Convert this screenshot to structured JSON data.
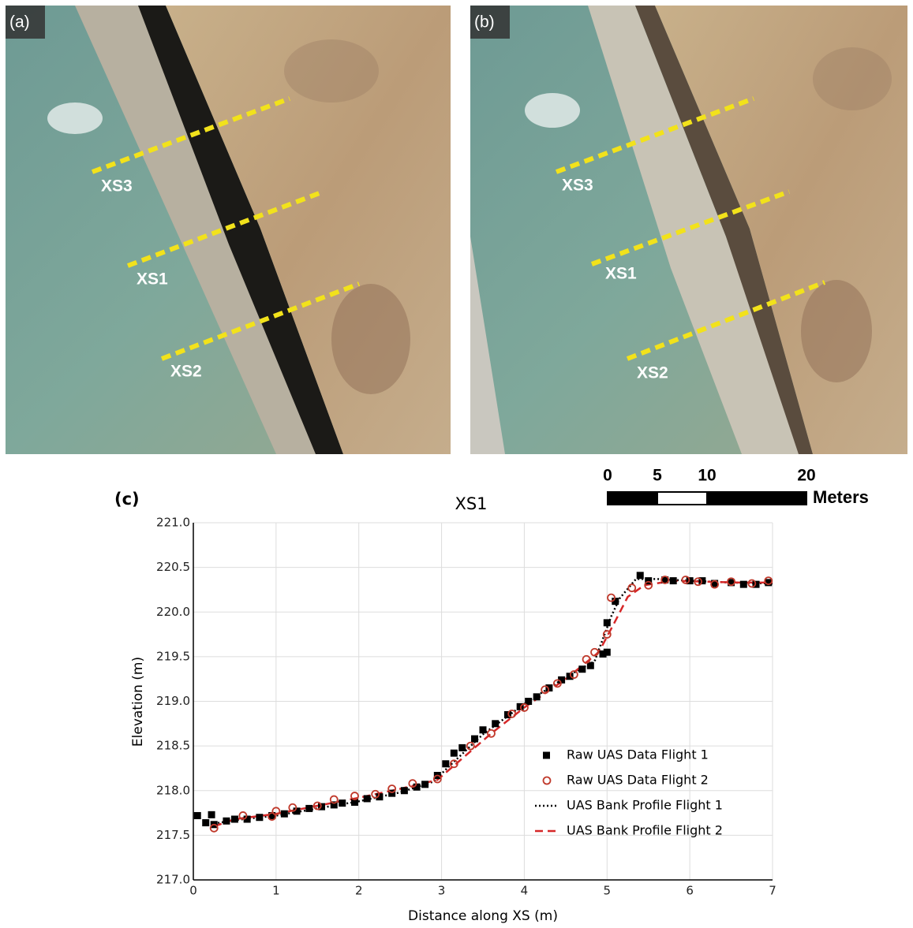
{
  "panels": [
    {
      "label": "(a)",
      "sections": [
        "XS3",
        "XS1",
        "XS2"
      ]
    },
    {
      "label": "(b)",
      "sections": [
        "XS3",
        "XS1",
        "XS2"
      ]
    }
  ],
  "scale_bar": {
    "ticks": [
      0,
      5,
      10,
      20
    ],
    "unit": "Meters"
  },
  "chart_data": {
    "type": "scatter",
    "panel_label": "(c)",
    "title": "XS1",
    "x_label": "Distance along XS (m)",
    "y_label": "Elevation (m)",
    "xlim": [
      0,
      7
    ],
    "ylim": [
      217,
      221
    ],
    "xticks": [
      0,
      1,
      2,
      3,
      4,
      5,
      6,
      7
    ],
    "yticks": [
      {
        "value": 217,
        "label": "217.0"
      },
      217.5,
      {
        "value": 218,
        "label": "218.0"
      },
      218.5,
      {
        "value": 219,
        "label": "219.0"
      },
      219.5,
      {
        "value": 220,
        "label": "220.0"
      },
      220.5,
      {
        "value": 221,
        "label": "221.0"
      }
    ],
    "grid": true,
    "legend": "lower right",
    "series": [
      {
        "name": "Raw UAS Data Flight 1",
        "style": "square",
        "color": "#000000",
        "x": [
          0.05,
          0.15,
          0.22,
          0.25,
          0.4,
          0.5,
          0.65,
          0.8,
          0.95,
          1.1,
          1.25,
          1.4,
          1.55,
          1.7,
          1.8,
          1.95,
          2.1,
          2.25,
          2.4,
          2.55,
          2.7,
          2.8,
          2.95,
          3.05,
          3.15,
          3.25,
          3.4,
          3.5,
          3.65,
          3.8,
          3.95,
          4.05,
          4.15,
          4.3,
          4.45,
          4.55,
          4.7,
          4.8,
          4.95,
          5.0,
          5.0,
          5.1,
          5.4,
          5.5,
          5.7,
          5.8,
          6.0,
          6.15,
          6.3,
          6.5,
          6.65,
          6.8,
          6.95
        ],
        "values": [
          217.72,
          217.64,
          217.73,
          217.62,
          217.66,
          217.68,
          217.68,
          217.7,
          217.72,
          217.74,
          217.77,
          217.8,
          217.82,
          217.84,
          217.86,
          217.87,
          217.91,
          217.93,
          217.97,
          218.0,
          218.04,
          218.07,
          218.17,
          218.3,
          218.42,
          218.48,
          218.58,
          218.68,
          218.75,
          218.85,
          218.94,
          219.0,
          219.05,
          219.15,
          219.24,
          219.28,
          219.36,
          219.4,
          219.53,
          219.55,
          219.88,
          220.12,
          220.41,
          220.35,
          220.36,
          220.35,
          220.35,
          220.35,
          220.32,
          220.33,
          220.31,
          220.31,
          220.33
        ]
      },
      {
        "name": "Raw UAS Data Flight 2",
        "style": "circle",
        "color": "#c0392b",
        "x": [
          0.25,
          0.6,
          0.95,
          1.0,
          1.2,
          1.5,
          1.7,
          1.95,
          2.2,
          2.4,
          2.65,
          2.95,
          3.15,
          3.35,
          3.6,
          3.85,
          4.0,
          4.25,
          4.4,
          4.6,
          4.75,
          4.85,
          5.0,
          5.05,
          5.3,
          5.5,
          5.7,
          5.95,
          6.1,
          6.3,
          6.5,
          6.75,
          6.95
        ],
        "values": [
          217.58,
          217.72,
          217.71,
          217.77,
          217.81,
          217.83,
          217.9,
          217.94,
          217.96,
          218.02,
          218.08,
          218.13,
          218.3,
          218.5,
          218.64,
          218.86,
          218.93,
          219.13,
          219.2,
          219.3,
          219.47,
          219.55,
          219.75,
          220.16,
          220.27,
          220.3,
          220.36,
          220.36,
          220.34,
          220.31,
          220.34,
          220.32,
          220.35
        ]
      },
      {
        "name": "UAS Bank Profile Flight 1",
        "style": "dotted",
        "color": "#000000",
        "x": [
          0.25,
          0.5,
          1,
          1.5,
          2,
          2.5,
          2.9,
          3.1,
          3.5,
          4,
          4.5,
          4.85,
          5.05,
          5.15,
          5.35,
          5.6,
          6,
          6.5,
          7
        ],
        "values": [
          217.63,
          217.67,
          217.72,
          217.8,
          217.88,
          217.98,
          218.1,
          218.28,
          218.63,
          218.97,
          219.27,
          219.45,
          219.95,
          220.15,
          220.37,
          220.37,
          220.35,
          220.33,
          220.32
        ]
      },
      {
        "name": "UAS Bank Profile Flight 2",
        "style": "dashed",
        "color": "#d62728",
        "x": [
          0.25,
          0.5,
          1,
          1.5,
          2,
          2.5,
          2.95,
          3.2,
          3.6,
          4,
          4.5,
          4.9,
          5.1,
          5.25,
          5.45,
          5.8,
          6.2,
          6.6,
          7
        ],
        "values": [
          217.6,
          217.68,
          217.74,
          217.83,
          217.92,
          218.02,
          218.12,
          218.32,
          218.64,
          218.93,
          219.25,
          219.55,
          219.9,
          220.17,
          220.3,
          220.35,
          220.34,
          220.33,
          220.33
        ]
      }
    ]
  }
}
